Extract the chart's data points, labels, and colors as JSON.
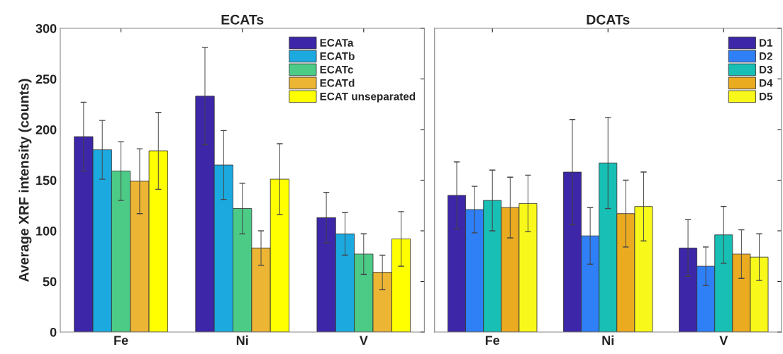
{
  "chart_data": [
    {
      "type": "bar",
      "title": "ECATs",
      "ylabel": "Average XRF intensity (counts)",
      "categories": [
        "Fe",
        "Ni",
        "V"
      ],
      "ylim": [
        0,
        300
      ],
      "yticks": [
        0,
        50,
        100,
        150,
        200,
        250,
        300
      ],
      "legend": "top right",
      "grid": false,
      "series": [
        {
          "name": "ECATa",
          "color": "#3d26a8",
          "values": [
            193,
            233,
            113
          ],
          "errors": [
            34,
            48,
            25
          ]
        },
        {
          "name": "ECATb",
          "color": "#1ba9e0",
          "values": [
            180,
            165,
            97
          ],
          "errors": [
            29,
            34,
            21
          ]
        },
        {
          "name": "ECATc",
          "color": "#4ccb87",
          "values": [
            159,
            122,
            77
          ],
          "errors": [
            29,
            25,
            20
          ]
        },
        {
          "name": "ECATd",
          "color": "#edb534",
          "values": [
            149,
            83,
            59
          ],
          "errors": [
            32,
            17,
            17
          ]
        },
        {
          "name": "ECAT unseparated",
          "color": "#ffff00",
          "values": [
            179,
            151,
            92
          ],
          "errors": [
            38,
            35,
            27
          ]
        }
      ]
    },
    {
      "type": "bar",
      "title": "DCATs",
      "categories": [
        "Fe",
        "Ni",
        "V"
      ],
      "ylim": [
        0,
        300
      ],
      "yticks": [
        {
          "value": 0,
          "label": null
        },
        {
          "value": 50,
          "label": null
        },
        {
          "value": 100,
          "label": null
        },
        {
          "value": 150,
          "label": null
        },
        {
          "value": 200,
          "label": null
        },
        {
          "value": 250,
          "label": null
        },
        {
          "value": 300,
          "label": null
        }
      ],
      "tick_labels": "x",
      "legend": "top right",
      "grid": false,
      "series": [
        {
          "name": "D1",
          "color": "#3d26a8",
          "values": [
            135,
            158,
            83
          ],
          "errors": [
            33,
            52,
            28
          ]
        },
        {
          "name": "D2",
          "color": "#2f7ff7",
          "values": [
            121,
            95,
            65
          ],
          "errors": [
            23,
            28,
            19
          ]
        },
        {
          "name": "D3",
          "color": "#17bfb4",
          "values": [
            130,
            167,
            96
          ],
          "errors": [
            30,
            45,
            28
          ]
        },
        {
          "name": "D4",
          "color": "#eaab21",
          "values": [
            123,
            117,
            77
          ],
          "errors": [
            30,
            33,
            24
          ]
        },
        {
          "name": "D5",
          "color": "#f8f81a",
          "values": [
            127,
            124,
            74
          ],
          "errors": [
            28,
            34,
            23
          ]
        }
      ]
    }
  ]
}
